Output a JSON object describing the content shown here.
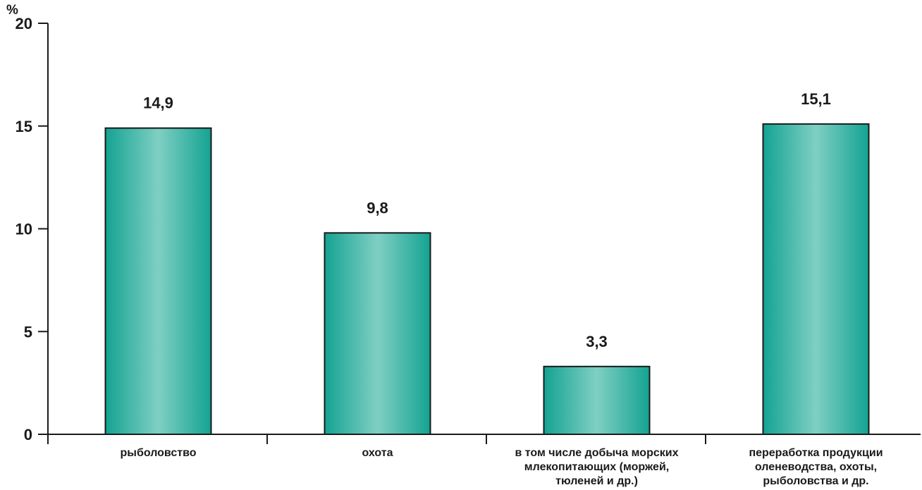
{
  "chart_data": {
    "type": "bar",
    "ylabel": "%",
    "ylim": [
      0,
      20
    ],
    "yticks": [
      0,
      5,
      10,
      15,
      20
    ],
    "categories": [
      [
        "рыболовство"
      ],
      [
        "охота"
      ],
      [
        "в том числе добыча морских",
        "млекопитающих (моржей,",
        "тюленей и др.)"
      ],
      [
        "переработка продукции",
        "оленеводства, охоты,",
        "рыболовства и др."
      ]
    ],
    "values": [
      14.9,
      9.8,
      3.3,
      15.1
    ],
    "value_labels": [
      "14,9",
      "9,8",
      "3,3",
      "15,1"
    ],
    "bar_color": "#14a392",
    "bar_highlight": "#7fcfc3",
    "grid": false,
    "legend": "none"
  }
}
